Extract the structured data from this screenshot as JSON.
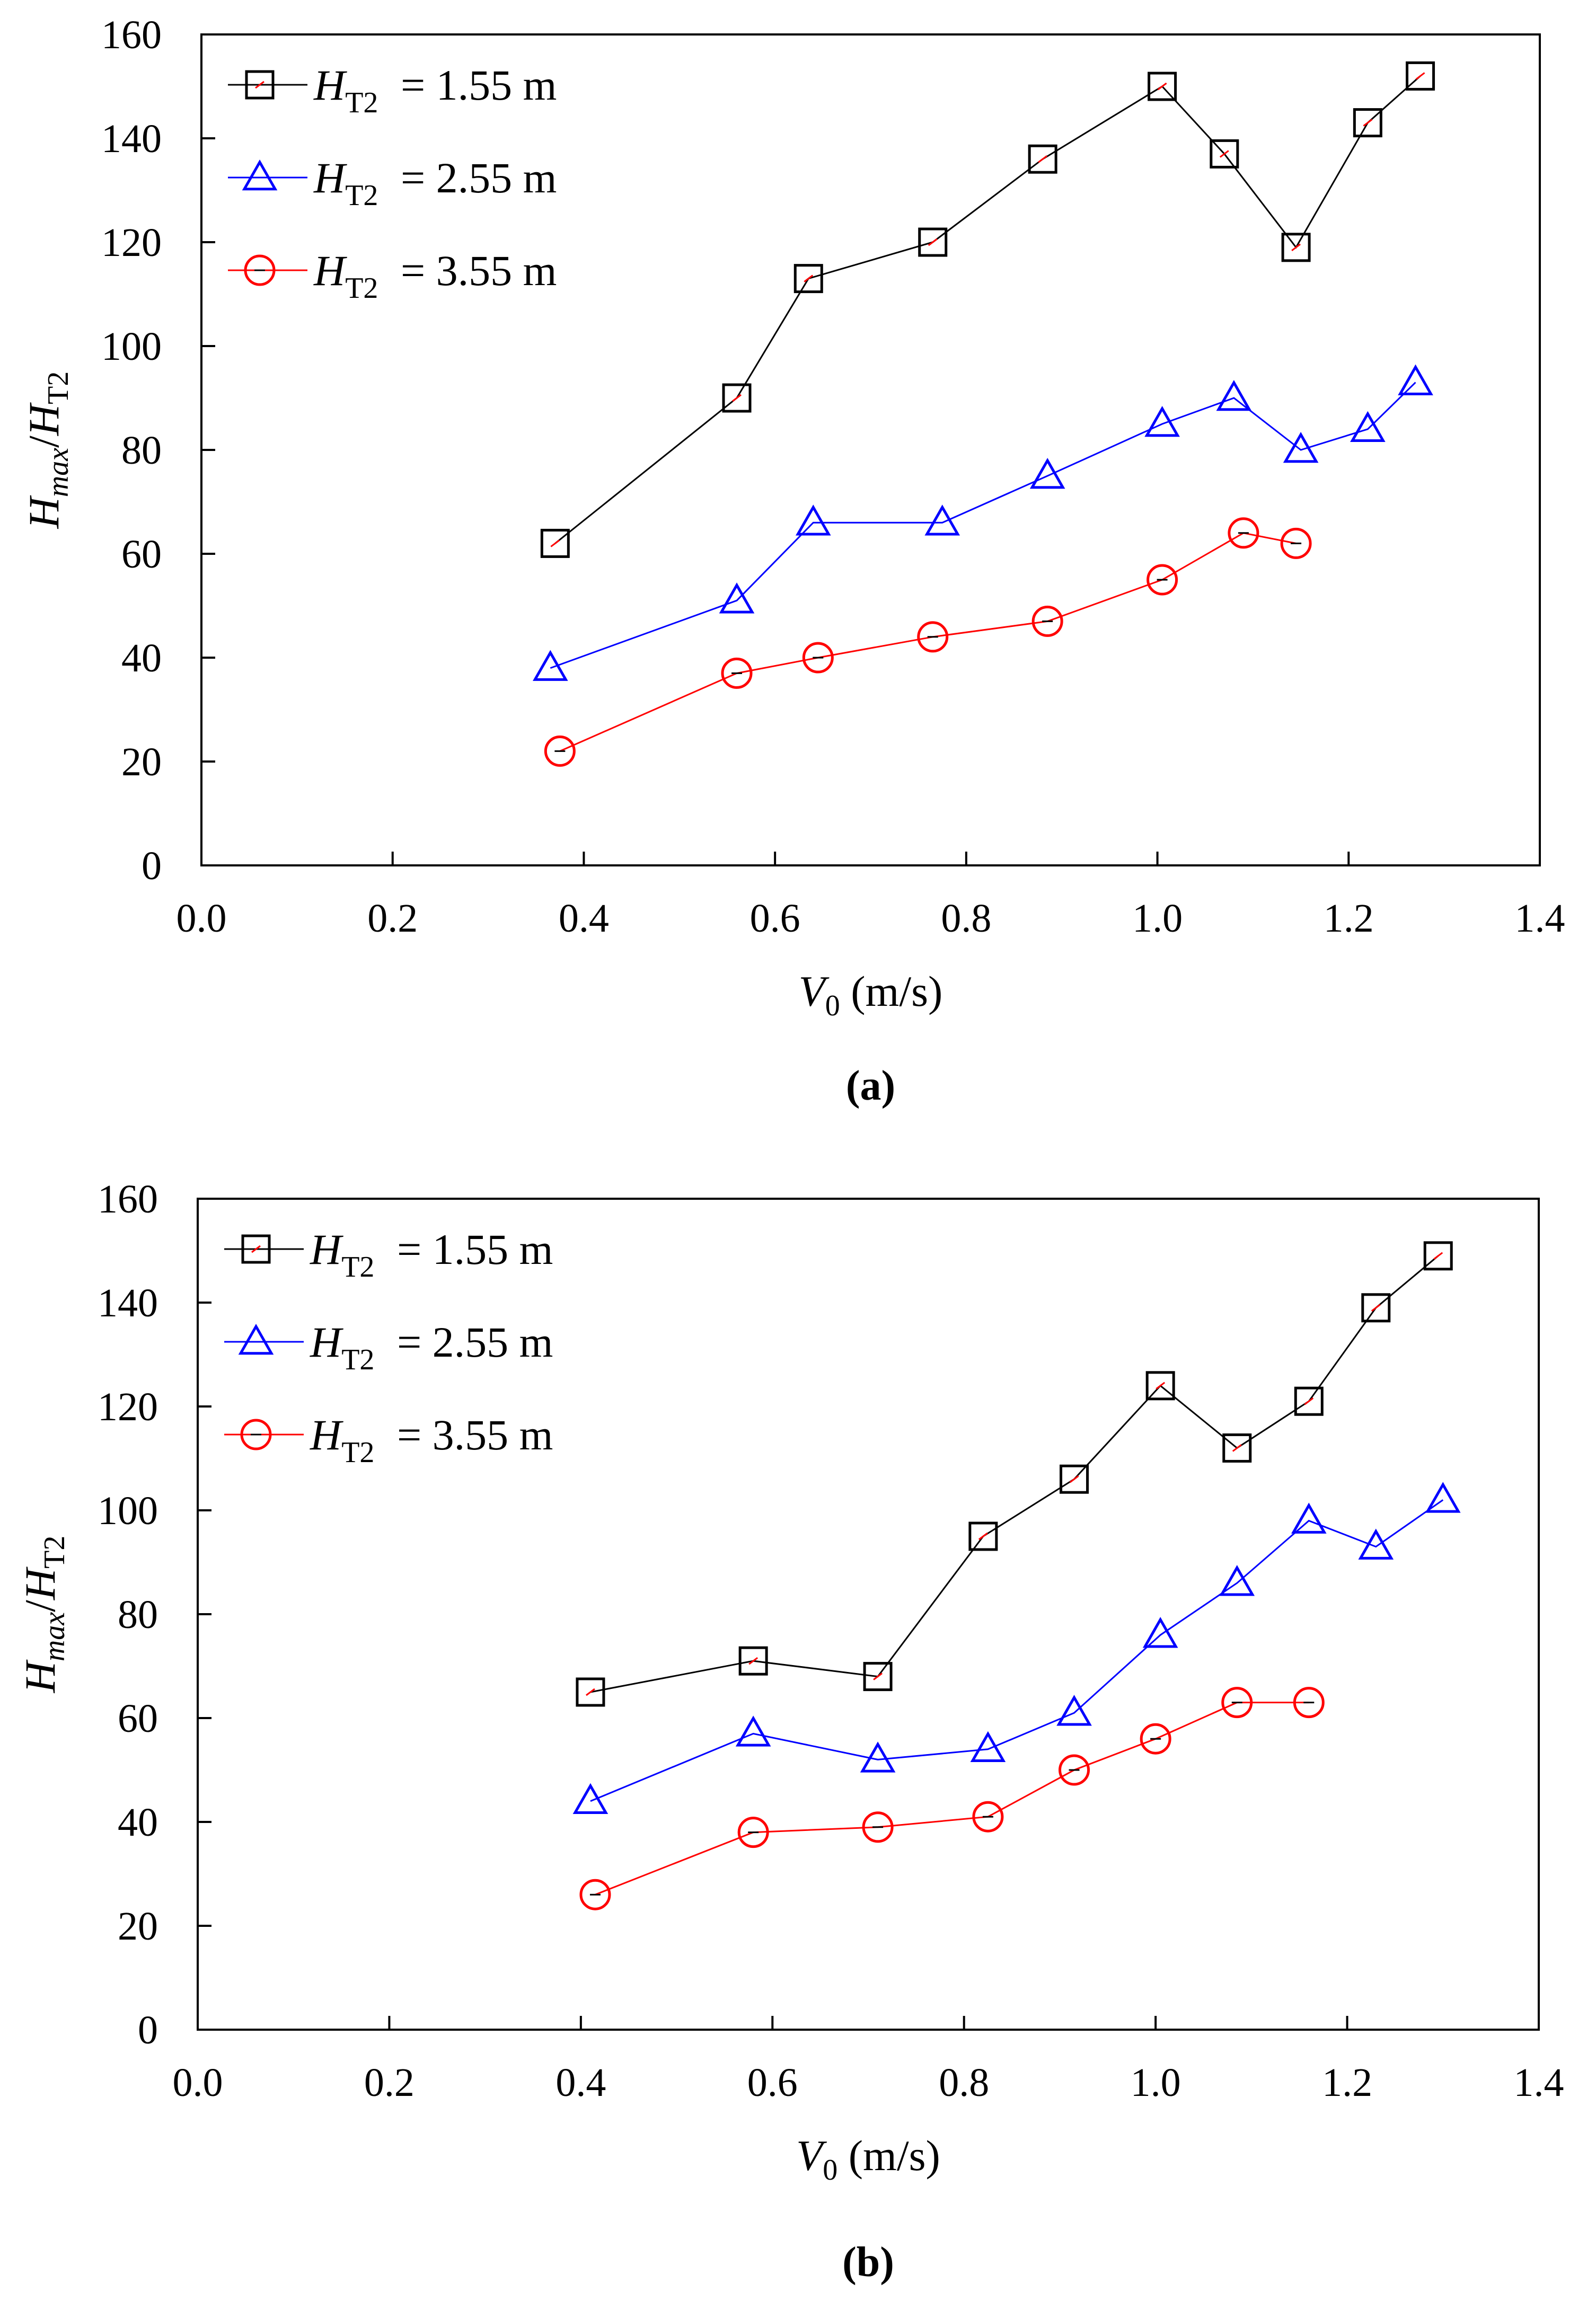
{
  "chart_data": [
    {
      "type": "line",
      "caption": "(a)",
      "xlabel": {
        "main": "V",
        "sub": "0",
        "unit": " (m/s)"
      },
      "ylabel": {
        "h": "H",
        "max": "max",
        "slash": "/",
        "h2": "H",
        "t2": "T2"
      },
      "xlim": [
        0,
        1.4
      ],
      "ylim": [
        0,
        160
      ],
      "xticks": [
        "0.0",
        "0.2",
        "0.4",
        "0.6",
        "0.8",
        "1.0",
        "1.2",
        "1.4"
      ],
      "yticks": [
        "0",
        "20",
        "40",
        "60",
        "80",
        "100",
        "120",
        "140",
        "160"
      ],
      "legend_position": "top-left",
      "series": [
        {
          "name": "H_T2 = 1.55 m",
          "legend": {
            "h": "H",
            "sub": "T2",
            "rest": " = 1.55 m"
          },
          "marker": "square",
          "color": "#000000",
          "x": [
            0.37,
            0.56,
            0.635,
            0.765,
            0.88,
            1.005,
            1.07,
            1.145,
            1.22,
            1.275
          ],
          "y": [
            62,
            90,
            113,
            120,
            136,
            150,
            137,
            119,
            143,
            152
          ]
        },
        {
          "name": "H_T2 = 2.55 m",
          "legend": {
            "h": "H",
            "sub": "T2",
            "rest": " = 2.55 m"
          },
          "marker": "triangle",
          "color": "#0000ff",
          "x": [
            0.365,
            0.56,
            0.64,
            0.775,
            0.885,
            1.005,
            1.08,
            1.15,
            1.22,
            1.27
          ],
          "y": [
            38,
            51,
            66,
            66,
            75,
            85,
            90,
            80,
            84,
            93
          ]
        },
        {
          "name": "H_T2 = 3.55 m",
          "legend": {
            "h": "H",
            "sub": "T2",
            "rest": " = 3.55 m"
          },
          "marker": "circle",
          "color": "#ff0000",
          "x": [
            0.375,
            0.56,
            0.645,
            0.765,
            0.885,
            1.005,
            1.09,
            1.145
          ],
          "y": [
            22,
            37,
            40,
            44,
            47,
            55,
            64,
            62
          ]
        }
      ]
    },
    {
      "type": "line",
      "caption": "(b)",
      "xlabel": {
        "main": "V",
        "sub": "0",
        "unit": " (m/s)"
      },
      "ylabel": {
        "h": "H",
        "max": "max",
        "slash": "/",
        "h2": "H",
        "t2": "T2"
      },
      "xlim": [
        0,
        1.4
      ],
      "ylim": [
        0,
        160
      ],
      "xticks": [
        "0.0",
        "0.2",
        "0.4",
        "0.6",
        "0.8",
        "1.0",
        "1.2",
        "1.4"
      ],
      "yticks": [
        "0",
        "20",
        "40",
        "60",
        "80",
        "100",
        "120",
        "140",
        "160"
      ],
      "legend_position": "top-left",
      "series": [
        {
          "name": "H_T2 = 1.55 m",
          "legend": {
            "h": "H",
            "sub": "T2",
            "rest": " = 1.55 m"
          },
          "marker": "square",
          "color": "#000000",
          "x": [
            0.41,
            0.58,
            0.71,
            0.82,
            0.915,
            1.005,
            1.085,
            1.16,
            1.23,
            1.295
          ],
          "y": [
            65,
            71,
            68,
            95,
            106,
            124,
            112,
            121,
            139,
            149
          ]
        },
        {
          "name": "H_T2 = 2.55 m",
          "legend": {
            "h": "H",
            "sub": "T2",
            "rest": " = 2.55 m"
          },
          "marker": "triangle",
          "color": "#0000ff",
          "x": [
            0.41,
            0.58,
            0.71,
            0.825,
            0.915,
            1.005,
            1.085,
            1.16,
            1.23,
            1.3
          ],
          "y": [
            44,
            57,
            52,
            54,
            61,
            76,
            86,
            98,
            93,
            102
          ]
        },
        {
          "name": "H_T2 = 3.55 m",
          "legend": {
            "h": "H",
            "sub": "T2",
            "rest": " = 3.55 m"
          },
          "marker": "circle",
          "color": "#ff0000",
          "x": [
            0.415,
            0.58,
            0.71,
            0.825,
            0.915,
            1.0,
            1.085,
            1.16
          ],
          "y": [
            26,
            38,
            39,
            41,
            50,
            56,
            63,
            63
          ]
        }
      ]
    }
  ]
}
